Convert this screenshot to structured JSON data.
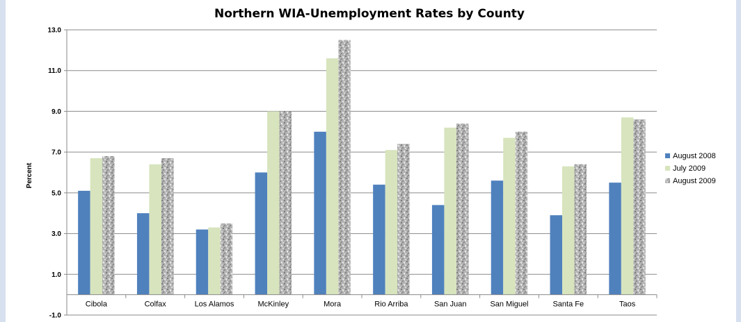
{
  "chart_data": {
    "type": "bar",
    "title": "Northern WIA-Unemployment Rates by County",
    "ylabel": "Percent",
    "xlabel": "",
    "ylim": [
      -1.0,
      13.0
    ],
    "yticks": [
      "-1.0",
      "1.0",
      "3.0",
      "5.0",
      "7.0",
      "9.0",
      "11.0",
      "13.0"
    ],
    "categories": [
      "Cibola",
      "Colfax",
      "Los Alamos",
      "McKinley",
      "Mora",
      "Rio Arriba",
      "San Juan",
      "San Miguel",
      "Santa Fe",
      "Taos"
    ],
    "series": [
      {
        "name": "August 2008",
        "color": "#4f81bd",
        "values": [
          5.1,
          4.0,
          3.2,
          6.0,
          8.0,
          5.4,
          4.4,
          5.6,
          3.9,
          5.5
        ]
      },
      {
        "name": "July 2009",
        "color": "#d7e4bd",
        "values": [
          6.7,
          6.4,
          3.3,
          9.0,
          11.6,
          7.1,
          8.2,
          7.7,
          6.3,
          8.7
        ]
      },
      {
        "name": "August 2009",
        "color": "#a6a6a6",
        "pattern": "granite",
        "values": [
          6.8,
          6.7,
          3.5,
          9.0,
          12.5,
          7.4,
          8.4,
          8.0,
          6.4,
          8.6
        ]
      }
    ],
    "legend_position": "right",
    "grid": true
  }
}
